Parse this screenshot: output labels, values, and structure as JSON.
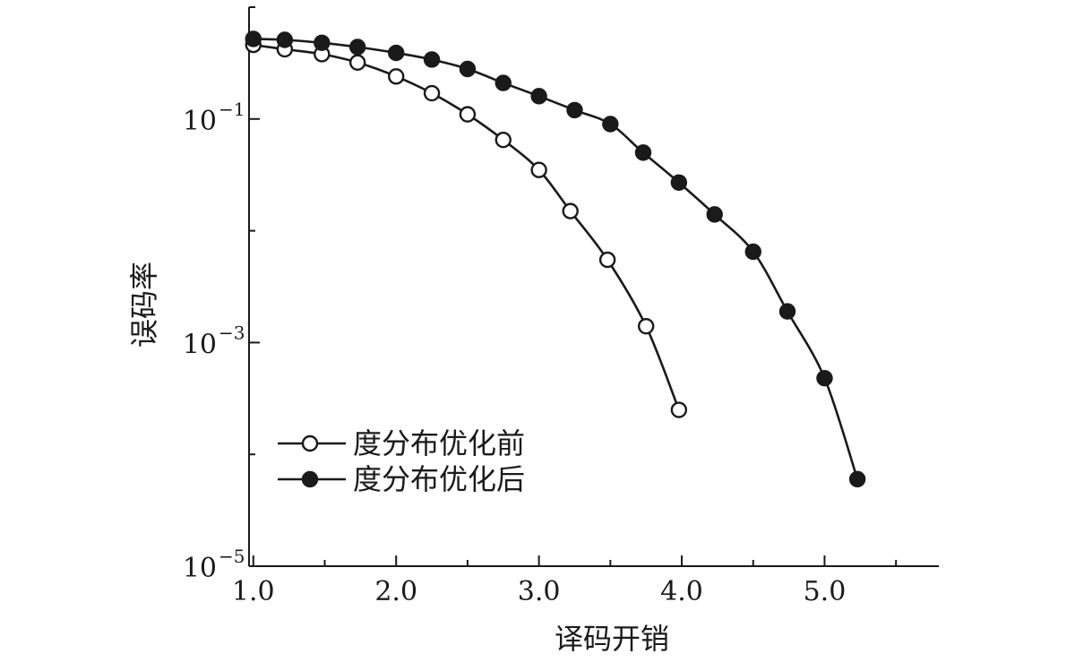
{
  "chart_data": {
    "type": "line",
    "title": "",
    "xlabel": "译码开销",
    "ylabel": "误码率",
    "x_ticks": [
      "1.0",
      "2.0",
      "3.0",
      "4.0",
      "5.0"
    ],
    "y_ticks": [
      {
        "base": "10",
        "exp": "−1"
      },
      {
        "base": "10",
        "exp": "−3"
      },
      {
        "base": "10",
        "exp": "−5"
      }
    ],
    "xlim": [
      0.97,
      5.8
    ],
    "ylim": [
      1e-05,
      1.0
    ],
    "y_scale": "log",
    "grid": false,
    "legend_position": "lower-left",
    "series": [
      {
        "name": "度分布优化前",
        "marker": "open-circle",
        "x": [
          1.0,
          1.22,
          1.48,
          1.73,
          2.0,
          2.25,
          2.5,
          2.75,
          3.0,
          3.22,
          3.48,
          3.75,
          3.98
        ],
        "y": [
          0.46,
          0.42,
          0.38,
          0.32,
          0.24,
          0.17,
          0.11,
          0.065,
          0.035,
          0.015,
          0.0055,
          0.0014,
          0.00025
        ]
      },
      {
        "name": "度分布优化后",
        "marker": "filled-circle",
        "x": [
          1.0,
          1.22,
          1.48,
          1.73,
          2.0,
          2.25,
          2.5,
          2.75,
          3.0,
          3.25,
          3.5,
          3.73,
          3.98,
          4.23,
          4.5,
          4.74,
          5.0,
          5.23
        ],
        "y": [
          0.52,
          0.51,
          0.48,
          0.44,
          0.39,
          0.34,
          0.28,
          0.21,
          0.16,
          0.12,
          0.09,
          0.05,
          0.027,
          0.014,
          0.0065,
          0.0019,
          0.00048,
          6e-05
        ]
      }
    ],
    "colors": {
      "line": "#1a1a1a",
      "background": "#ffffff"
    }
  }
}
